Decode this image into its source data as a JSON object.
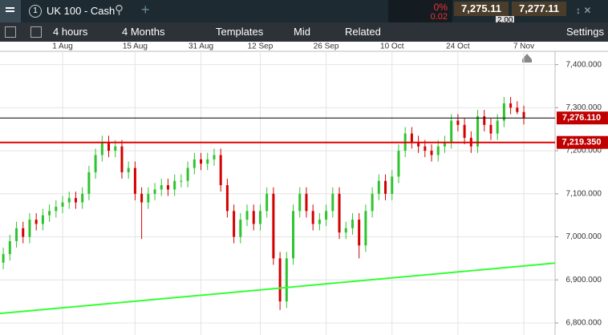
{
  "toolbar": {
    "tab_number": "1",
    "instrument": "UK 100 - Cash",
    "change_pct": "0%",
    "change": "0.02",
    "sell": "7,275.11",
    "spread": "2.00",
    "buy": "7,277.11",
    "interval": "4 hours",
    "range": "4 Months",
    "templates": "Templates",
    "price_type": "Mid",
    "related": "Related",
    "settings": "Settings"
  },
  "chart_data": {
    "type": "candlestick",
    "categories": [
      null,
      null,
      null,
      null,
      null,
      null,
      null,
      null,
      null,
      "1 Aug",
      null,
      null,
      null,
      null,
      null,
      null,
      null,
      null,
      null,
      null,
      "15 Aug",
      null,
      null,
      null,
      null,
      null,
      null,
      null,
      null,
      null,
      "31 Aug",
      null,
      null,
      null,
      null,
      null,
      null,
      null,
      null,
      "12 Sep",
      null,
      null,
      null,
      null,
      null,
      null,
      null,
      null,
      null,
      "26 Sep",
      null,
      null,
      null,
      null,
      null,
      null,
      null,
      null,
      null,
      "10 Oct",
      null,
      null,
      null,
      null,
      null,
      null,
      null,
      null,
      null,
      "24 Oct",
      null,
      null,
      null,
      null,
      null,
      null,
      null,
      null,
      null,
      "7 Nov"
    ],
    "open": [
      6940,
      6960,
      6990,
      7020,
      7000,
      7040,
      7030,
      7050,
      7060,
      7070,
      7080,
      7090,
      7080,
      7100,
      7150,
      7190,
      7220,
      7200,
      7210,
      7150,
      7160,
      7100,
      7080,
      7100,
      7110,
      7120,
      7110,
      7130,
      7130,
      7160,
      7180,
      7170,
      7180,
      7190,
      7120,
      7060,
      7000,
      7040,
      7060,
      7030,
      7060,
      7100,
      6950,
      6850,
      6950,
      7060,
      7100,
      7060,
      7030,
      7040,
      7060,
      7100,
      7010,
      7020,
      7040,
      6980,
      7060,
      7100,
      7130,
      7100,
      7140,
      7200,
      7240,
      7220,
      7210,
      7200,
      7190,
      7210,
      7220,
      7270,
      7260,
      7230,
      7210,
      7280,
      7260,
      7240,
      7270,
      7310,
      7300,
      7290
    ],
    "high": [
      6975,
      7005,
      7035,
      7035,
      7055,
      7055,
      7065,
      7075,
      7085,
      7095,
      7105,
      7105,
      7115,
      7165,
      7205,
      7235,
      7235,
      7225,
      7225,
      7175,
      7175,
      7115,
      7115,
      7125,
      7135,
      7135,
      7145,
      7145,
      7175,
      7195,
      7195,
      7195,
      7205,
      7205,
      7135,
      7075,
      7055,
      7075,
      7075,
      7075,
      7115,
      7115,
      6965,
      6965,
      7075,
      7115,
      7115,
      7075,
      7055,
      7075,
      7115,
      7115,
      7035,
      7055,
      7055,
      7075,
      7115,
      7145,
      7145,
      7155,
      7215,
      7255,
      7255,
      7235,
      7225,
      7215,
      7225,
      7235,
      7285,
      7285,
      7275,
      7245,
      7295,
      7295,
      7275,
      7285,
      7325,
      7325,
      7315,
      7305
    ],
    "low": [
      6925,
      6945,
      6975,
      6985,
      6985,
      7015,
      7015,
      7035,
      7045,
      7055,
      7065,
      7065,
      7065,
      7085,
      7135,
      7175,
      7185,
      7185,
      7135,
      7135,
      7085,
      6995,
      7065,
      7085,
      7095,
      7095,
      7095,
      7115,
      7115,
      7145,
      7155,
      7155,
      7165,
      7105,
      7045,
      6985,
      6985,
      7025,
      7015,
      7015,
      7045,
      6935,
      6830,
      6835,
      6935,
      7045,
      7045,
      7015,
      7015,
      7025,
      7045,
      6995,
      6995,
      7005,
      6950,
      6965,
      7045,
      7085,
      7085,
      7085,
      7125,
      7185,
      7205,
      7195,
      7185,
      7175,
      7175,
      7195,
      7205,
      7245,
      7215,
      7195,
      7195,
      7245,
      7225,
      7225,
      7255,
      7285,
      7285,
      7261
    ],
    "close": [
      6960,
      6990,
      7020,
      7000,
      7040,
      7030,
      7050,
      7060,
      7070,
      7080,
      7090,
      7080,
      7100,
      7150,
      7190,
      7220,
      7200,
      7210,
      7150,
      7160,
      7100,
      7080,
      7100,
      7110,
      7120,
      7110,
      7130,
      7130,
      7160,
      7180,
      7170,
      7180,
      7190,
      7120,
      7060,
      7000,
      7040,
      7060,
      7030,
      7060,
      7100,
      6950,
      6850,
      6950,
      7060,
      7100,
      7060,
      7030,
      7040,
      7060,
      7100,
      7010,
      7020,
      7040,
      6980,
      7060,
      7100,
      7130,
      7100,
      7140,
      7200,
      7240,
      7220,
      7210,
      7200,
      7190,
      7210,
      7220,
      7270,
      7260,
      7230,
      7210,
      7280,
      7260,
      7240,
      7270,
      7310,
      7300,
      7290,
      7276
    ],
    "up_color": "#2fc42f",
    "down_color": "#d40000",
    "ylim": [
      6772,
      7431
    ],
    "yticks": [
      {
        "value": 6800,
        "label": "6,800.000"
      },
      {
        "value": 6900,
        "label": "6,900.000"
      },
      {
        "value": 7000,
        "label": "7,000.000"
      },
      {
        "value": 7100,
        "label": "7,100.000"
      },
      {
        "value": 7200,
        "label": "7,200.000"
      },
      {
        "value": 7300,
        "label": "7,300.000"
      },
      {
        "value": 7400,
        "label": "7,400.000"
      }
    ],
    "grid": true,
    "price_lines": [
      {
        "value": 7276.11,
        "label": "7,276.110",
        "color": "#000000"
      },
      {
        "value": 7219.35,
        "label": "7,219.350",
        "color": "#e00000"
      }
    ],
    "trendline": {
      "color": "#33ff33",
      "values": [
        6822,
        6939
      ]
    }
  }
}
